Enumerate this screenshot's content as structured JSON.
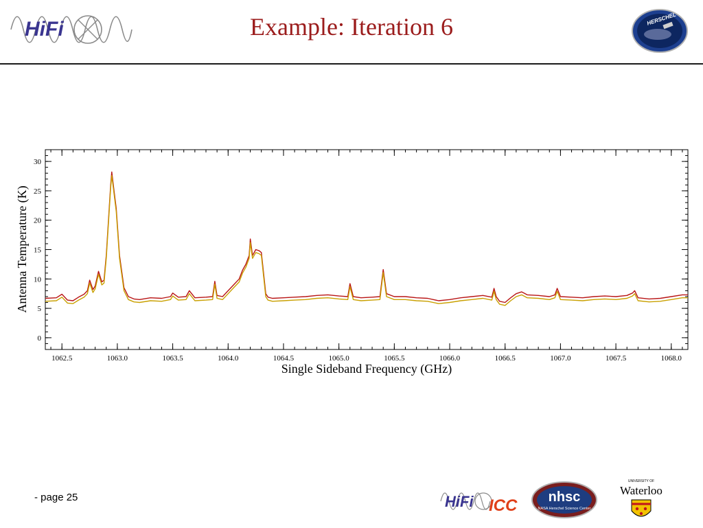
{
  "slide": {
    "title": "Example: Iteration 6",
    "page_label": "- page 25"
  },
  "logos": {
    "hifi": "HiFi",
    "herschel": "HERSCHEL",
    "icc": "ICC",
    "nhsc": "nhsc",
    "nhsc_sub": "NASA Herschel Science Center",
    "waterloo_small": "UNIVERSITY OF",
    "waterloo": "Waterloo"
  },
  "colors": {
    "title": "#9b1c1c",
    "series_red": "#b81414",
    "series_gold": "#c9a000"
  },
  "chart_data": {
    "type": "line",
    "xlabel": "Single Sideband Frequency (GHz)",
    "ylabel": "Antenna Temperature (K)",
    "xlim": [
      1062.35,
      1068.15
    ],
    "ylim": [
      -2,
      32
    ],
    "xticks": [
      1062.5,
      1063.0,
      1063.5,
      1064.0,
      1064.5,
      1065.0,
      1065.5,
      1066.0,
      1066.5,
      1067.0,
      1067.5,
      1068.0
    ],
    "xtick_labels": [
      "1062.5",
      "1063.0",
      "1063.5",
      "1064.0",
      "1064.5",
      "1065.0",
      "1065.5",
      "1066.0",
      "1066.5",
      "1067.0",
      "1067.5",
      "1068.0"
    ],
    "yticks": [
      0,
      5,
      10,
      15,
      20,
      25,
      30
    ],
    "ytick_labels": [
      "0",
      "5",
      "10",
      "15",
      "20",
      "25",
      "30"
    ],
    "grid": false,
    "series": [
      {
        "color": "#b81414",
        "x": [
          1062.35,
          1062.45,
          1062.5,
          1062.55,
          1062.6,
          1062.65,
          1062.7,
          1062.73,
          1062.75,
          1062.78,
          1062.8,
          1062.83,
          1062.86,
          1062.88,
          1062.9,
          1062.92,
          1062.94,
          1062.95,
          1062.97,
          1062.99,
          1063.02,
          1063.06,
          1063.1,
          1063.15,
          1063.2,
          1063.3,
          1063.4,
          1063.48,
          1063.5,
          1063.55,
          1063.62,
          1063.65,
          1063.7,
          1063.8,
          1063.86,
          1063.88,
          1063.9,
          1063.95,
          1064.0,
          1064.05,
          1064.1,
          1064.13,
          1064.16,
          1064.19,
          1064.2,
          1064.22,
          1064.25,
          1064.28,
          1064.3,
          1064.32,
          1064.34,
          1064.36,
          1064.4,
          1064.5,
          1064.6,
          1064.7,
          1064.8,
          1064.9,
          1065.0,
          1065.08,
          1065.1,
          1065.13,
          1065.2,
          1065.3,
          1065.37,
          1065.4,
          1065.43,
          1065.5,
          1065.6,
          1065.7,
          1065.8,
          1065.9,
          1066.0,
          1066.1,
          1066.2,
          1066.3,
          1066.38,
          1066.4,
          1066.42,
          1066.45,
          1066.5,
          1066.55,
          1066.6,
          1066.65,
          1066.7,
          1066.8,
          1066.9,
          1066.95,
          1066.97,
          1067.0,
          1067.1,
          1067.2,
          1067.3,
          1067.4,
          1067.5,
          1067.6,
          1067.65,
          1067.67,
          1067.7,
          1067.8,
          1067.9,
          1068.0,
          1068.1,
          1068.15
        ],
        "y": [
          6.7,
          6.8,
          7.4,
          6.4,
          6.3,
          6.9,
          7.4,
          8.0,
          9.8,
          8.2,
          8.8,
          11.3,
          9.5,
          9.8,
          14.0,
          20.0,
          26.0,
          28.2,
          25.0,
          22.0,
          14.0,
          8.5,
          7.0,
          6.6,
          6.5,
          6.8,
          6.7,
          7.0,
          7.6,
          6.9,
          7.0,
          8.0,
          6.8,
          6.9,
          7.0,
          9.6,
          7.2,
          7.0,
          8.0,
          9.0,
          10.0,
          11.5,
          12.5,
          14.0,
          16.8,
          14.0,
          15.0,
          14.8,
          14.5,
          11.0,
          7.5,
          6.9,
          6.7,
          6.8,
          6.9,
          7.0,
          7.2,
          7.3,
          7.1,
          7.0,
          9.2,
          7.0,
          6.8,
          6.9,
          7.0,
          11.6,
          7.5,
          7.0,
          7.0,
          6.8,
          6.7,
          6.3,
          6.5,
          6.8,
          7.0,
          7.2,
          6.9,
          8.4,
          7.0,
          6.2,
          6.0,
          6.8,
          7.5,
          7.8,
          7.3,
          7.2,
          7.0,
          7.3,
          8.4,
          7.0,
          6.9,
          6.8,
          7.0,
          7.1,
          7.0,
          7.2,
          7.6,
          8.0,
          6.8,
          6.6,
          6.7,
          7.0,
          7.3,
          7.3
        ]
      },
      {
        "color": "#c9a000",
        "x": [
          1062.35,
          1062.45,
          1062.5,
          1062.55,
          1062.6,
          1062.65,
          1062.7,
          1062.73,
          1062.75,
          1062.78,
          1062.8,
          1062.83,
          1062.86,
          1062.88,
          1062.9,
          1062.92,
          1062.94,
          1062.95,
          1062.97,
          1062.99,
          1063.02,
          1063.06,
          1063.1,
          1063.15,
          1063.2,
          1063.3,
          1063.4,
          1063.48,
          1063.5,
          1063.55,
          1063.62,
          1063.65,
          1063.7,
          1063.8,
          1063.86,
          1063.88,
          1063.9,
          1063.95,
          1064.0,
          1064.05,
          1064.1,
          1064.13,
          1064.16,
          1064.19,
          1064.2,
          1064.22,
          1064.25,
          1064.28,
          1064.3,
          1064.32,
          1064.34,
          1064.36,
          1064.4,
          1064.5,
          1064.6,
          1064.7,
          1064.8,
          1064.9,
          1065.0,
          1065.08,
          1065.1,
          1065.13,
          1065.2,
          1065.3,
          1065.37,
          1065.4,
          1065.43,
          1065.5,
          1065.6,
          1065.7,
          1065.8,
          1065.9,
          1066.0,
          1066.1,
          1066.2,
          1066.3,
          1066.38,
          1066.4,
          1066.42,
          1066.45,
          1066.5,
          1066.55,
          1066.6,
          1066.65,
          1066.7,
          1066.8,
          1066.9,
          1066.95,
          1066.97,
          1067.0,
          1067.1,
          1067.2,
          1067.3,
          1067.4,
          1067.5,
          1067.6,
          1067.65,
          1067.67,
          1067.7,
          1067.8,
          1067.9,
          1068.0,
          1068.1,
          1068.15
        ],
        "y": [
          6.2,
          6.3,
          6.9,
          5.9,
          5.8,
          6.4,
          6.9,
          7.5,
          9.3,
          7.7,
          8.3,
          10.8,
          9.0,
          9.3,
          13.5,
          19.5,
          25.5,
          27.6,
          24.5,
          21.5,
          13.5,
          8.0,
          6.5,
          6.1,
          6.0,
          6.3,
          6.2,
          6.5,
          7.1,
          6.4,
          6.5,
          7.5,
          6.3,
          6.4,
          6.5,
          9.1,
          6.7,
          6.5,
          7.5,
          8.5,
          9.5,
          11.0,
          12.0,
          13.5,
          16.2,
          13.5,
          14.5,
          14.3,
          14.0,
          10.5,
          7.0,
          6.4,
          6.2,
          6.3,
          6.4,
          6.5,
          6.7,
          6.8,
          6.6,
          6.5,
          8.7,
          6.5,
          6.3,
          6.4,
          6.5,
          11.1,
          7.0,
          6.5,
          6.5,
          6.3,
          6.2,
          5.8,
          6.0,
          6.3,
          6.5,
          6.7,
          6.4,
          7.9,
          6.5,
          5.7,
          5.5,
          6.3,
          7.0,
          7.3,
          6.8,
          6.7,
          6.5,
          6.8,
          7.9,
          6.5,
          6.4,
          6.3,
          6.5,
          6.6,
          6.5,
          6.7,
          7.1,
          7.5,
          6.3,
          6.1,
          6.2,
          6.5,
          6.8,
          6.8
        ]
      }
    ]
  }
}
